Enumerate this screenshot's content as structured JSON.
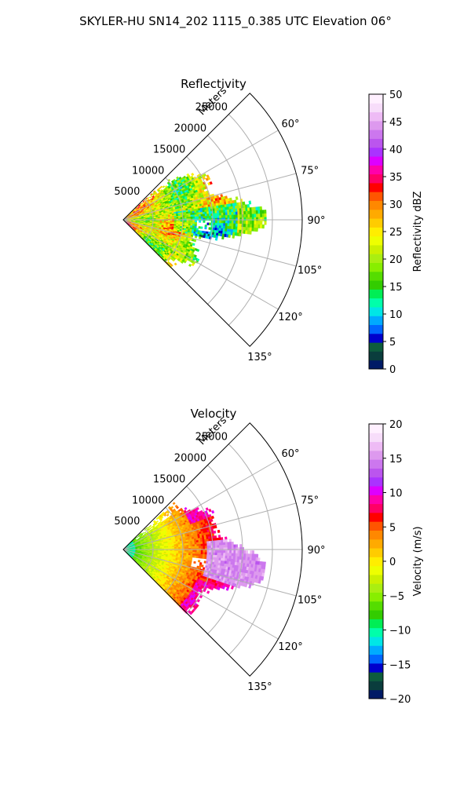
{
  "figure": {
    "suptitle": "SKYLER-HU  SN14_202  1115_0.385 UTC Elevation 06°"
  },
  "chart_data": [
    {
      "type": "heatmap",
      "subtype": "polar-sector-ppi",
      "title": "Reflectivity",
      "radial_label": "Meters",
      "radial_ticks": [
        5000,
        10000,
        15000,
        20000,
        25000
      ],
      "radial_tick_labels": [
        "5000",
        "10000",
        "15000",
        "20000",
        "25000"
      ],
      "rlim": [
        0,
        30000
      ],
      "theta_ticks_deg": [
        60,
        75,
        90,
        105,
        120,
        135
      ],
      "theta_tick_labels": [
        "60°",
        "75°",
        "90°",
        "105°",
        "120°",
        "135°"
      ],
      "theta_range_deg": [
        45,
        135
      ],
      "grid": true,
      "colorbar": {
        "label": "Reflectivity dBZ",
        "vmin": 0,
        "vmax": 50,
        "ticks": [
          0,
          5,
          10,
          15,
          20,
          25,
          30,
          35,
          40,
          45,
          50
        ],
        "tick_labels": [
          "0",
          "5",
          "10",
          "15",
          "20",
          "25",
          "30",
          "35",
          "40",
          "45",
          "50"
        ],
        "colors": [
          "#001a66",
          "#0a3d3d",
          "#0d5c3d",
          "#0000cc",
          "#0066ff",
          "#00aaff",
          "#00e6e6",
          "#00ffaa",
          "#00ee55",
          "#33cc00",
          "#55dd00",
          "#88ee00",
          "#aaee11",
          "#ccf000",
          "#eeff00",
          "#ffee00",
          "#ffcc00",
          "#ffaa00",
          "#ff8800",
          "#ff5500",
          "#ff0000",
          "#ff0066",
          "#ff00aa",
          "#dd00ff",
          "#aa33ff",
          "#bb55ee",
          "#cc77ee",
          "#dd99ee",
          "#eebbf5",
          "#f7ddfa",
          "#fff0ff"
        ]
      },
      "data_extent_m": 24000,
      "sector_profile": [
        {
          "az": 60,
          "median_dbz": 23
        },
        {
          "az": 75,
          "median_dbz": 22
        },
        {
          "az": 90,
          "median_dbz": 18
        },
        {
          "az": 105,
          "median_dbz": 20
        },
        {
          "az": 120,
          "median_dbz": 22
        }
      ]
    },
    {
      "type": "heatmap",
      "subtype": "polar-sector-ppi",
      "title": "Velocity",
      "radial_label": "Meters",
      "radial_ticks": [
        5000,
        10000,
        15000,
        20000,
        25000
      ],
      "radial_tick_labels": [
        "5000",
        "10000",
        "15000",
        "20000",
        "25000"
      ],
      "rlim": [
        0,
        30000
      ],
      "theta_ticks_deg": [
        60,
        75,
        90,
        105,
        120,
        135
      ],
      "theta_tick_labels": [
        "60°",
        "75°",
        "90°",
        "105°",
        "120°",
        "135°"
      ],
      "theta_range_deg": [
        45,
        135
      ],
      "grid": true,
      "colorbar": {
        "label": "Velocity (m/s)",
        "vmin": -20,
        "vmax": 20,
        "ticks": [
          -20,
          -15,
          -10,
          -5,
          0,
          5,
          10,
          15,
          20
        ],
        "tick_labels": [
          "−20",
          "−15",
          "−10",
          "−5",
          "0",
          "5",
          "10",
          "15",
          "20"
        ],
        "colors": [
          "#001a66",
          "#0a3d3d",
          "#0d5c3d",
          "#0000cc",
          "#0066ff",
          "#00aaff",
          "#00e6e6",
          "#00ffaa",
          "#00ee55",
          "#33cc00",
          "#55dd00",
          "#88ee00",
          "#aaee11",
          "#ccf000",
          "#eeff00",
          "#ffee00",
          "#ffcc00",
          "#ffaa00",
          "#ff8800",
          "#ff5500",
          "#ff0000",
          "#ff0066",
          "#ff00aa",
          "#dd00ff",
          "#aa33ff",
          "#bb55ee",
          "#cc77ee",
          "#dd99ee",
          "#eebbf5",
          "#f7ddfa",
          "#fff0ff"
        ]
      },
      "data_extent_m": 24000,
      "near_range_velocity_ms": -10,
      "sector_profile": [
        {
          "az": 60,
          "velocity_ms": 10
        },
        {
          "az": 75,
          "velocity_ms": 8
        },
        {
          "az": 90,
          "velocity_ms": 15
        },
        {
          "az": 105,
          "velocity_ms": 12
        },
        {
          "az": 120,
          "velocity_ms": 5
        }
      ]
    }
  ]
}
